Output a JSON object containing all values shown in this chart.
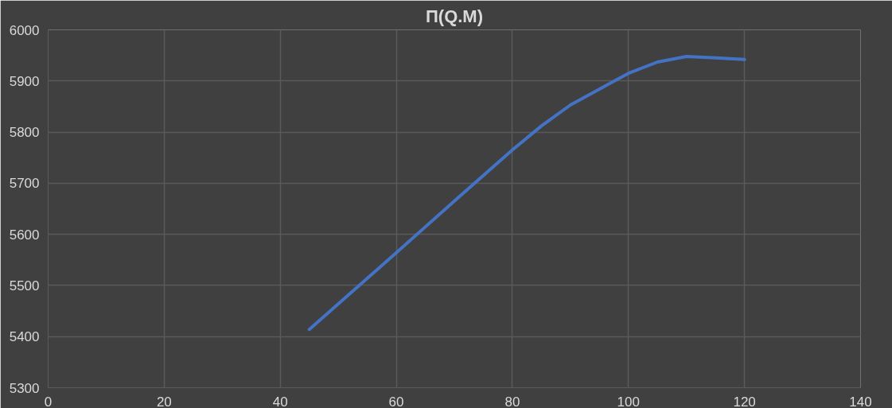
{
  "chart_data": {
    "type": "line",
    "title": "П(Q.M)",
    "x": [
      45,
      60,
      70,
      80,
      85,
      90,
      100,
      105,
      110,
      115,
      120
    ],
    "series": [
      {
        "color": "#4472c4",
        "values": [
          5414,
          5564,
          5665,
          5765,
          5812,
          5853,
          5915,
          5937,
          5948,
          5945,
          5942
        ]
      }
    ],
    "xlim": [
      0,
      140
    ],
    "xticks": [
      0,
      20,
      40,
      60,
      80,
      100,
      120,
      140
    ],
    "ylim": [
      5300,
      6000
    ],
    "yticks": [
      5300,
      5400,
      5500,
      5600,
      5700,
      5800,
      5900,
      6000
    ],
    "grid": true,
    "marker": "none",
    "line_style": "solid"
  }
}
